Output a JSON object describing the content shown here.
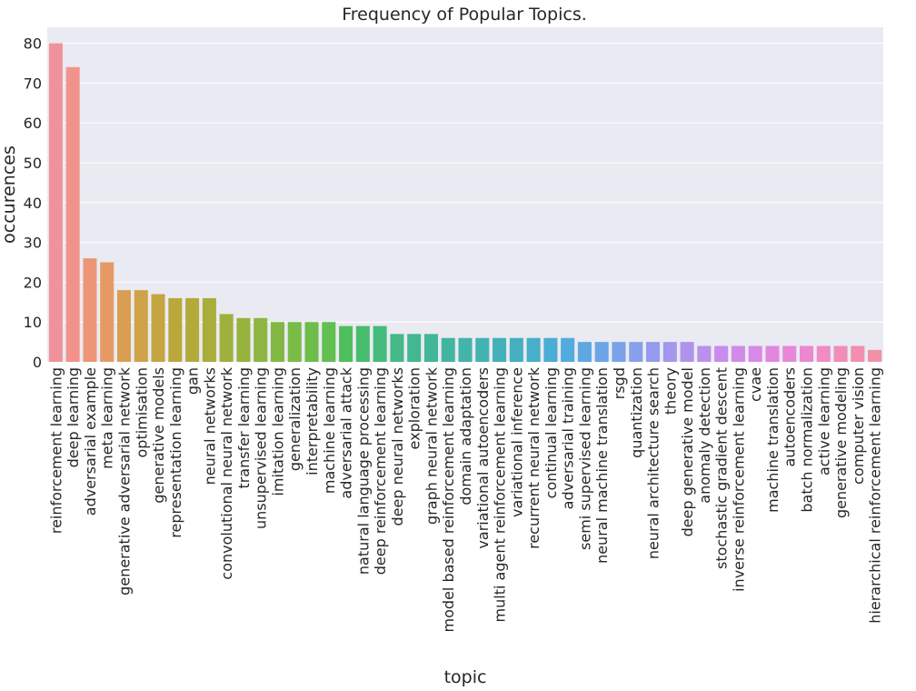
{
  "chart_data": {
    "type": "bar",
    "title": "Frequency of Popular Topics.",
    "xlabel": "topic",
    "ylabel": "occurences",
    "ylim": [
      0,
      84
    ],
    "yticks": [
      0,
      10,
      20,
      30,
      40,
      50,
      60,
      70,
      80
    ],
    "grid": true,
    "background": "#eaeaf2",
    "categories": [
      "reinforcement learning",
      "deep learning",
      "adversarial example",
      "meta learning",
      "generative adversarial network",
      "optimisation",
      "generative models",
      "representation learning",
      "gan",
      "neural networks",
      "convolutional neural network",
      "transfer learning",
      "unsupervised learning",
      "imitation learning",
      "generalization",
      "interpretability",
      "machine learning",
      "adversarial attack",
      "natural language processing",
      "deep reinforcement learning",
      "deep neural networks",
      "exploration",
      "graph neural network",
      "model based reinforcement learning",
      "domain adaptation",
      "variational autoencoders",
      "multi agent reinforcement learning",
      "variational inference",
      "recurrent neural network",
      "continual learning",
      "adversarial training",
      "semi supervised learning",
      "neural machine translation",
      "rsgd",
      "quantization",
      "neural architecture search",
      "theory",
      "deep generative model",
      "anomaly detection",
      "stochastic gradient descent",
      "inverse reinforcement learning",
      "cvae",
      "machine translation",
      "autoencoders",
      "batch normalization",
      "active  learning",
      "generative modeling",
      "computer vision",
      "hierarchical reinforcement learning"
    ],
    "values": [
      80,
      74,
      26,
      25,
      18,
      18,
      17,
      16,
      16,
      16,
      12,
      11,
      11,
      10,
      10,
      10,
      10,
      9,
      9,
      9,
      7,
      7,
      7,
      6,
      6,
      6,
      6,
      6,
      6,
      6,
      6,
      5,
      5,
      5,
      5,
      5,
      5,
      5,
      4,
      4,
      4,
      4,
      4,
      4,
      4,
      4,
      4,
      4,
      3
    ],
    "colors": [
      "#f0929c",
      "#f2938b",
      "#ec9677",
      "#e59a66",
      "#d99e52",
      "#cfa248",
      "#c5a540",
      "#bba83a",
      "#b3aa3a",
      "#a9ad3a",
      "#9fb03c",
      "#96b33e",
      "#8db641",
      "#84b844",
      "#79bb47",
      "#6ebd4b",
      "#61c050",
      "#4fbf5c",
      "#48bd6d",
      "#46bb7b",
      "#44b986",
      "#43b890",
      "#42b699",
      "#42b5a1",
      "#42b4a8",
      "#42b3b0",
      "#43b2b8",
      "#44b0c0",
      "#46afc9",
      "#4aadd3",
      "#52abdc",
      "#5da8e3",
      "#6ca5e7",
      "#7aa2ea",
      "#889fec",
      "#969bee",
      "#a398ee",
      "#af94ee",
      "#bb90ed",
      "#c78cec",
      "#d18aea",
      "#da88e6",
      "#e286e0",
      "#e887d8",
      "#ec88cf",
      "#ef8bc5",
      "#f08dbb",
      "#f08fb0",
      "#f091a6"
    ]
  }
}
